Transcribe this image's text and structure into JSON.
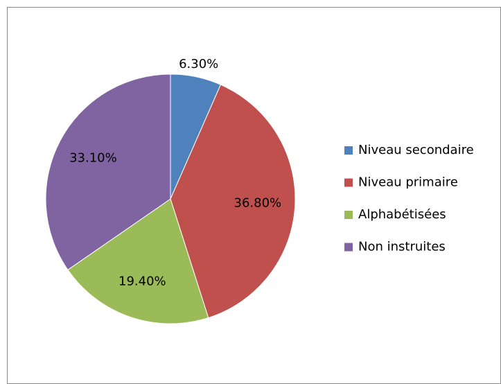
{
  "chart_data": {
    "type": "pie",
    "categories": [
      "Niveau secondaire",
      "Niveau primaire",
      "Alphabétisées",
      "Non instruites"
    ],
    "values": [
      6.3,
      36.8,
      19.4,
      33.1
    ],
    "value_labels": [
      "6.30%",
      "36.80%",
      "19.40%",
      "33.10%"
    ],
    "colors": [
      "#4f81bd",
      "#c0504d",
      "#9bbb59",
      "#8064a2"
    ],
    "legend": "right"
  }
}
